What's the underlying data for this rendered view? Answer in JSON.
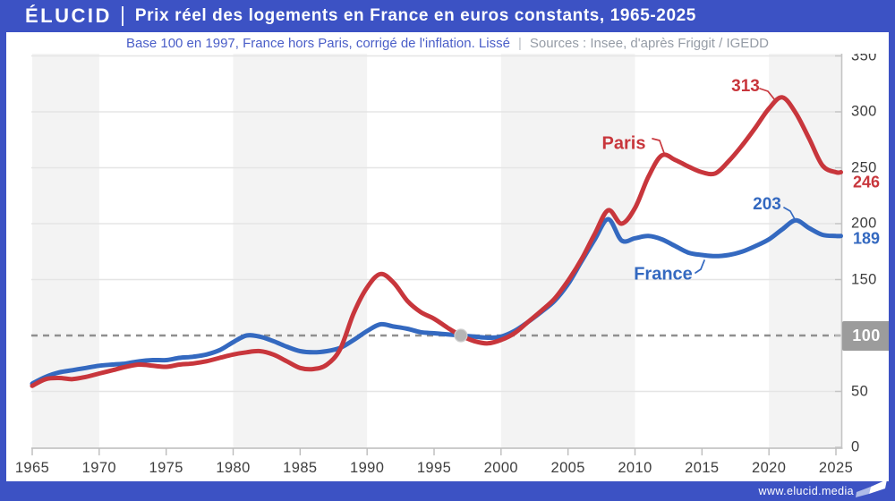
{
  "page": {
    "brand": "ÉLUCID",
    "title": "Prix réel des logements en France en euros constants, 1965-2025",
    "subtitle_main": "Base 100 en 1997, France hors Paris, corrigé de l'inflation. Lissé",
    "subtitle_sep": "|",
    "subtitle_sources": "Sources : Insee, d'après Friggit / IGEDD",
    "footer_url": "www.elucid.media",
    "colors": {
      "header_blue": "#3C52C4",
      "paris_red": "#C8363C",
      "france_blue": "#3469C0",
      "band_gray": "#F3F3F3",
      "gridline": "#E5E5E5",
      "dashed_base_line": "#8F8F8F",
      "badge_gray": "#9C9C9C",
      "tick_text": "#3E3E3E"
    }
  },
  "chart_data": {
    "type": "line",
    "title": "Prix réel des logements en France en euros constants, 1965-2025",
    "subtitle": "Base 100 en 1997, France hors Paris, corrigé de l'inflation. Lissé",
    "sources": "Sources : Insee, d'après Friggit / IGEDD",
    "xlim": [
      1965,
      2025
    ],
    "ylim": [
      0,
      360
    ],
    "x_ticks": [
      1965,
      1970,
      1975,
      1980,
      1985,
      1990,
      1995,
      2000,
      2005,
      2010,
      2015,
      2020,
      2025
    ],
    "y_ticks": [
      0,
      50,
      100,
      150,
      200,
      250,
      300,
      350
    ],
    "grid_values": [
      50,
      150,
      200,
      250,
      300,
      350
    ],
    "base_line_value": 100,
    "base_badge": "100",
    "base_point": {
      "year": 1997,
      "value": 100
    },
    "shaded_decades": [
      [
        1965,
        1970
      ],
      [
        1980,
        1990
      ],
      [
        2000,
        2010
      ],
      [
        2020,
        2025.4
      ]
    ],
    "x": [
      1965,
      1966,
      1967,
      1968,
      1969,
      1970,
      1971,
      1972,
      1973,
      1974,
      1975,
      1976,
      1977,
      1978,
      1979,
      1980,
      1981,
      1982,
      1983,
      1984,
      1985,
      1986,
      1987,
      1988,
      1989,
      1990,
      1991,
      1992,
      1993,
      1994,
      1995,
      1996,
      1997,
      1998,
      1999,
      2000,
      2001,
      2002,
      2003,
      2004,
      2005,
      2006,
      2007,
      2008,
      2009,
      2010,
      2011,
      2012,
      2013,
      2014,
      2015,
      2016,
      2017,
      2018,
      2019,
      2020,
      2021,
      2022,
      2023,
      2024,
      2025
    ],
    "series": [
      {
        "name": "France",
        "color": "#3469C0",
        "values": [
          57,
          63,
          67,
          69,
          71,
          73,
          74,
          75,
          77,
          78,
          78,
          80,
          81,
          83,
          87,
          94,
          100,
          99,
          95,
          90,
          86,
          85,
          86,
          89,
          96,
          104,
          110,
          108,
          106,
          103,
          102,
          101,
          100,
          99,
          98,
          99,
          104,
          112,
          121,
          131,
          146,
          166,
          186,
          204,
          185,
          187,
          189,
          186,
          180,
          174,
          172,
          171,
          172,
          175,
          180,
          186,
          195,
          203,
          196,
          190,
          189
        ]
      },
      {
        "name": "Paris",
        "color": "#C8363C",
        "values": [
          55,
          61,
          62,
          61,
          63,
          66,
          69,
          72,
          74,
          73,
          72,
          74,
          75,
          77,
          80,
          83,
          85,
          86,
          83,
          77,
          71,
          70,
          74,
          88,
          120,
          143,
          155,
          147,
          131,
          121,
          115,
          107,
          100,
          95,
          93,
          96,
          102,
          112,
          122,
          133,
          149,
          168,
          191,
          212,
          200,
          214,
          242,
          261,
          257,
          251,
          246,
          245,
          256,
          270,
          286,
          303,
          313,
          299,
          276,
          252,
          246
        ]
      }
    ],
    "annotations": [
      {
        "id": "paris-series-label",
        "text": "Paris",
        "color": "#C8363C",
        "x": 697,
        "y": 161,
        "size": 20,
        "connector": [
          [
            729,
            155
          ],
          [
            737,
            157
          ],
          [
            742,
            171
          ]
        ]
      },
      {
        "id": "paris-peak-value",
        "text": "313",
        "color": "#C8363C",
        "x": 833,
        "y": 97,
        "size": 19,
        "connector": [
          [
            849,
            99
          ],
          [
            858,
            102
          ],
          [
            866,
            112
          ]
        ]
      },
      {
        "id": "france-series-label",
        "text": "France",
        "color": "#3469C0",
        "x": 741,
        "y": 307,
        "size": 20,
        "connector": [
          [
            777,
            305
          ],
          [
            783,
            301
          ],
          [
            787,
            291
          ]
        ]
      },
      {
        "id": "france-peak-value",
        "text": "203",
        "color": "#3469C0",
        "x": 857,
        "y": 229,
        "size": 19,
        "connector": [
          [
            876,
            232
          ],
          [
            883,
            236
          ],
          [
            888,
            245
          ]
        ]
      },
      {
        "id": "paris-end-value",
        "text": "246",
        "color": "#C8363C",
        "x": 968,
        "y": 204,
        "size": 18
      },
      {
        "id": "france-end-value",
        "text": "189",
        "color": "#3469C0",
        "x": 968,
        "y": 267,
        "size": 18
      }
    ]
  }
}
